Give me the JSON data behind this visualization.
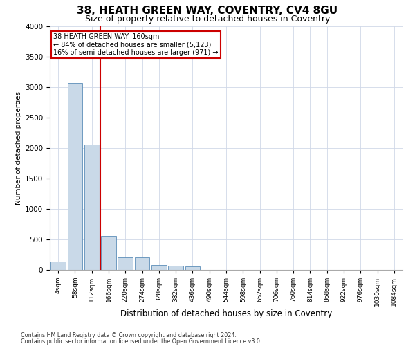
{
  "title1": "38, HEATH GREEN WAY, COVENTRY, CV4 8GU",
  "title2": "Size of property relative to detached houses in Coventry",
  "xlabel": "Distribution of detached houses by size in Coventry",
  "ylabel": "Number of detached properties",
  "bin_labels": [
    "4sqm",
    "58sqm",
    "112sqm",
    "166sqm",
    "220sqm",
    "274sqm",
    "328sqm",
    "382sqm",
    "436sqm",
    "490sqm",
    "544sqm",
    "598sqm",
    "652sqm",
    "706sqm",
    "760sqm",
    "814sqm",
    "868sqm",
    "922sqm",
    "976sqm",
    "1030sqm",
    "1084sqm"
  ],
  "bar_values": [
    140,
    3060,
    2050,
    560,
    205,
    200,
    85,
    65,
    60,
    0,
    0,
    0,
    0,
    0,
    0,
    0,
    0,
    0,
    0,
    0,
    0
  ],
  "bar_color": "#c9d9e8",
  "bar_edge_color": "#5b8db8",
  "vline_color": "#cc0000",
  "annotation_lines": [
    "38 HEATH GREEN WAY: 160sqm",
    "← 84% of detached houses are smaller (5,123)",
    "16% of semi-detached houses are larger (971) →"
  ],
  "annotation_box_color": "#cc0000",
  "ylim": [
    0,
    4000
  ],
  "yticks": [
    0,
    500,
    1000,
    1500,
    2000,
    2500,
    3000,
    3500,
    4000
  ],
  "footer1": "Contains HM Land Registry data © Crown copyright and database right 2024.",
  "footer2": "Contains public sector information licensed under the Open Government Licence v3.0.",
  "bg_color": "#ffffff",
  "grid_color": "#d0d8e8",
  "title1_fontsize": 11,
  "title2_fontsize": 9
}
